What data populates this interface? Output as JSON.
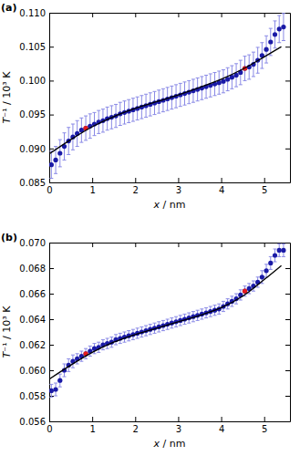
{
  "chart_data": [
    {
      "type": "scatter",
      "title": "(a)",
      "xlabel": "x / nm",
      "ylabel": "T⁻¹ / 10³ K",
      "xlim": [
        0,
        5.6
      ],
      "xticks": [
        0,
        1,
        2,
        3,
        4,
        5
      ],
      "ylim": [
        0.085,
        0.11
      ],
      "yticks": [
        0.085,
        {
          "value": 0.09,
          "label": "0.090"
        },
        0.095,
        {
          "value": 0.1,
          "label": "0.100"
        },
        0.105,
        {
          "value": 0.11,
          "label": "0.110"
        }
      ],
      "series": [
        {
          "type": "scatter",
          "color": "#1a1aa6",
          "marker": "circle",
          "x": [
            0.05,
            0.15,
            0.25,
            0.35,
            0.45,
            0.55,
            0.65,
            0.75,
            0.85,
            0.95,
            1.05,
            1.15,
            1.25,
            1.35,
            1.45,
            1.55,
            1.65,
            1.75,
            1.85,
            1.95,
            2.05,
            2.15,
            2.25,
            2.35,
            2.45,
            2.55,
            2.65,
            2.75,
            2.85,
            2.95,
            3.05,
            3.15,
            3.25,
            3.35,
            3.45,
            3.55,
            3.65,
            3.75,
            3.85,
            3.95,
            4.05,
            4.15,
            4.25,
            4.35,
            4.45,
            4.55,
            4.65,
            4.75,
            4.85,
            4.95,
            5.05,
            5.15,
            5.25,
            5.35,
            5.45
          ],
          "values": [
            0.0876,
            0.0883,
            0.0893,
            0.0903,
            0.0911,
            0.0917,
            0.0922,
            0.0927,
            0.093,
            0.0933,
            0.0936,
            0.0939,
            0.0941,
            0.0944,
            0.0946,
            0.0948,
            0.0951,
            0.0953,
            0.0955,
            0.0957,
            0.0959,
            0.0961,
            0.0963,
            0.0965,
            0.0967,
            0.0969,
            0.0971,
            0.0973,
            0.0975,
            0.0977,
            0.0979,
            0.0981,
            0.0983,
            0.0985,
            0.0987,
            0.0989,
            0.0991,
            0.0993,
            0.0995,
            0.0997,
            0.0999,
            0.1002,
            0.1005,
            0.1008,
            0.1012,
            0.1018,
            0.102,
            0.1024,
            0.103,
            0.1037,
            0.1046,
            0.1057,
            0.1068,
            0.1076,
            0.1079
          ],
          "errors": [
            0.002,
            0.002,
            0.002,
            0.002,
            0.002,
            0.0019,
            0.0019,
            0.0018,
            0.0018,
            0.0018,
            0.0017,
            0.0017,
            0.0017,
            0.0017,
            0.0017,
            0.0017,
            0.0017,
            0.0017,
            0.0017,
            0.0017,
            0.0017,
            0.0017,
            0.0017,
            0.0017,
            0.0017,
            0.0017,
            0.0017,
            0.0017,
            0.0017,
            0.0017,
            0.0017,
            0.0017,
            0.0017,
            0.0017,
            0.0017,
            0.0017,
            0.0017,
            0.0017,
            0.0017,
            0.0017,
            0.0017,
            0.0017,
            0.0017,
            0.0017,
            0.0018,
            0.0018,
            0.0018,
            0.0018,
            0.0019,
            0.0019,
            0.002,
            0.002,
            0.002,
            0.002,
            0.002
          ]
        },
        {
          "type": "scatter",
          "color": "#e41a1c",
          "marker": "circle",
          "x": [
            0.85,
            4.55
          ],
          "values": [
            0.093,
            0.1018
          ]
        },
        {
          "type": "line",
          "color": "#000000",
          "line_style": "solid",
          "x": [
            0,
            0.5,
            1,
            1.5,
            2,
            2.5,
            3,
            3.5,
            4,
            4.5,
            5,
            5.4
          ],
          "values": [
            0.0892,
            0.0913,
            0.0932,
            0.0947,
            0.0959,
            0.0969,
            0.0979,
            0.099,
            0.1002,
            0.1017,
            0.1035,
            0.105
          ]
        }
      ]
    },
    {
      "type": "scatter",
      "title": "(b)",
      "xlabel": "x / nm",
      "ylabel": "T⁻¹ / 10³ K",
      "xlim": [
        0,
        5.6
      ],
      "xticks": [
        0,
        1,
        2,
        3,
        4,
        5
      ],
      "ylim": [
        0.056,
        0.07
      ],
      "yticks": [
        0.056,
        0.058,
        {
          "value": 0.06,
          "label": "0.060"
        },
        0.062,
        0.064,
        0.066,
        0.068,
        {
          "value": 0.07,
          "label": "0.070"
        }
      ],
      "series": [
        {
          "type": "scatter",
          "color": "#1a1aa6",
          "marker": "circle",
          "x": [
            0.05,
            0.15,
            0.25,
            0.35,
            0.45,
            0.55,
            0.65,
            0.75,
            0.85,
            0.95,
            1.05,
            1.15,
            1.25,
            1.35,
            1.45,
            1.55,
            1.65,
            1.75,
            1.85,
            1.95,
            2.05,
            2.15,
            2.25,
            2.35,
            2.45,
            2.55,
            2.65,
            2.75,
            2.85,
            2.95,
            3.05,
            3.15,
            3.25,
            3.35,
            3.45,
            3.55,
            3.65,
            3.75,
            3.85,
            3.95,
            4.05,
            4.15,
            4.25,
            4.35,
            4.45,
            4.55,
            4.65,
            4.75,
            4.85,
            4.95,
            5.05,
            5.15,
            5.25,
            5.35,
            5.45
          ],
          "values": [
            0.0584,
            0.0585,
            0.0592,
            0.06,
            0.0604,
            0.0607,
            0.0609,
            0.0611,
            0.0613,
            0.0615,
            0.0617,
            0.0618,
            0.062,
            0.0621,
            0.0622,
            0.0624,
            0.0625,
            0.0626,
            0.0627,
            0.0628,
            0.0629,
            0.063,
            0.0631,
            0.0632,
            0.0633,
            0.0634,
            0.0635,
            0.0636,
            0.0637,
            0.0638,
            0.0639,
            0.064,
            0.0641,
            0.0642,
            0.0643,
            0.0644,
            0.0645,
            0.0646,
            0.0647,
            0.0648,
            0.065,
            0.0652,
            0.0654,
            0.0656,
            0.0659,
            0.0662,
            0.0664,
            0.0666,
            0.0669,
            0.0673,
            0.0678,
            0.0684,
            0.069,
            0.0694,
            0.0694
          ],
          "errors": [
            0.0005,
            0.0005,
            0.0005,
            0.0005,
            0.0005,
            0.0005,
            0.0004,
            0.0004,
            0.0004,
            0.0004,
            0.0004,
            0.0004,
            0.0004,
            0.0004,
            0.0004,
            0.0004,
            0.0004,
            0.0004,
            0.0004,
            0.0004,
            0.0004,
            0.0004,
            0.0004,
            0.0004,
            0.0004,
            0.0004,
            0.0004,
            0.0004,
            0.0004,
            0.0004,
            0.0004,
            0.0004,
            0.0004,
            0.0004,
            0.0004,
            0.0004,
            0.0004,
            0.0004,
            0.0004,
            0.0004,
            0.0004,
            0.0004,
            0.0004,
            0.0004,
            0.0004,
            0.0004,
            0.0004,
            0.0004,
            0.0004,
            0.0005,
            0.0005,
            0.0005,
            0.0005,
            0.0005,
            0.0005
          ]
        },
        {
          "type": "scatter",
          "color": "#e41a1c",
          "marker": "circle",
          "x": [
            0.85,
            4.55
          ],
          "values": [
            0.0613,
            0.0662
          ]
        },
        {
          "type": "line",
          "color": "#000000",
          "line_style": "solid",
          "x": [
            0,
            0.5,
            1,
            1.5,
            2,
            2.5,
            3,
            3.5,
            4,
            4.5,
            5,
            5.4
          ],
          "values": [
            0.0593,
            0.0604,
            0.0614,
            0.0622,
            0.0628,
            0.0633,
            0.0638,
            0.0643,
            0.0649,
            0.0658,
            0.0671,
            0.0682
          ]
        }
      ]
    }
  ]
}
